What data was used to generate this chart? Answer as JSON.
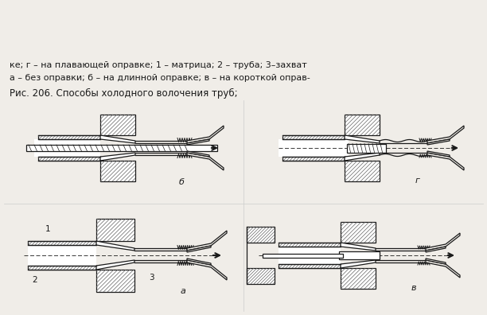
{
  "title_line1": "Рис. 206. Способы холодного волочения труб;",
  "title_line2": "а – без оправки; б – на длинной оправке; в – на короткой оправ-",
  "title_line3": "ке; г – на плавающей оправке; 1 – матрица; 2 – труба; 3–захват",
  "bg_color": "#f0ede8",
  "lc": "#1a1a1a",
  "hc": "#666666"
}
